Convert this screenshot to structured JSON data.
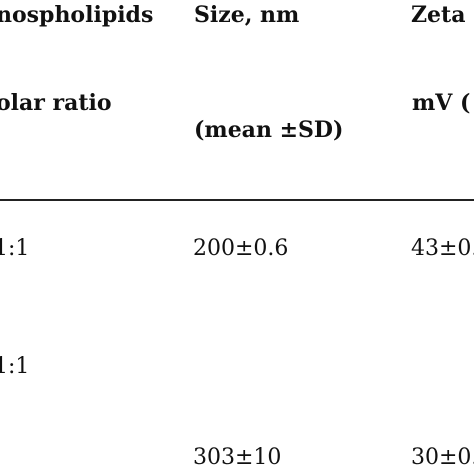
{
  "table": {
    "headers": {
      "col1_line1": "nospholipids",
      "col1_line2": "olar ratio",
      "col2_line1": "Size, nm",
      "col2_line2": "(mean ±SD)",
      "col3_line1": "Zeta",
      "col3_line2": "mV ("
    },
    "rows": [
      {
        "col1": "1:1",
        "col2": "200±0.6",
        "col3": "43±0."
      },
      {
        "col1": "1:1",
        "col2": "",
        "col3": ""
      },
      {
        "col1": "",
        "col2": "303±10",
        "col3": "30±0."
      }
    ]
  }
}
